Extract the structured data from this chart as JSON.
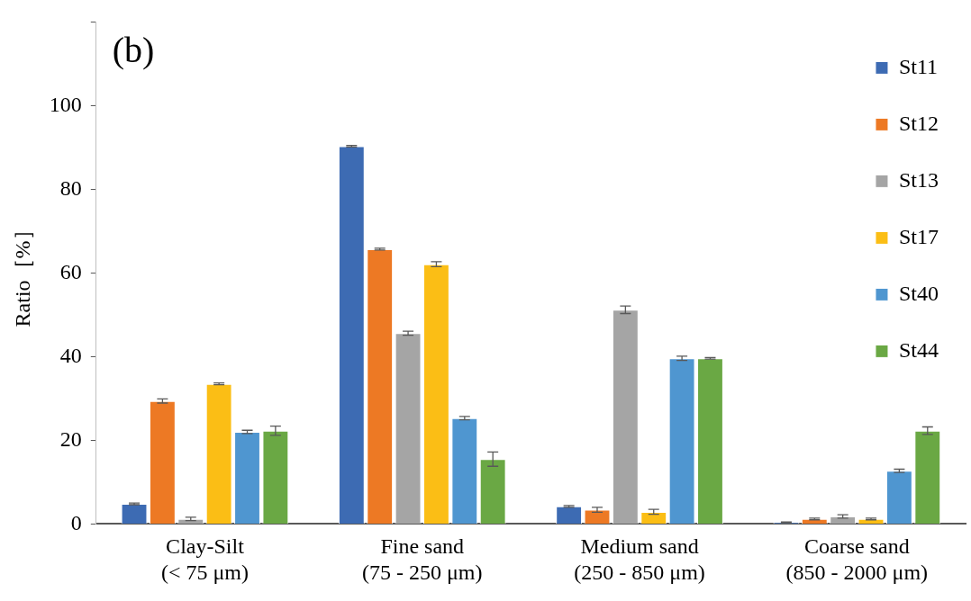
{
  "chart_data": {
    "type": "bar",
    "ylabel": "Ratio［%］",
    "annotations": [
      "(b)"
    ],
    "categories": [
      "Clay-Silt\n(< 75 μm)",
      "Fine sand\n(75 - 250 μm)",
      "Medium sand\n(250 - 850 μm)",
      "Coarse sand\n(850 - 2000 μm)"
    ],
    "series": [
      {
        "name": "St11",
        "color": "#3d6bb3",
        "values": [
          4.8,
          90.3,
          4.2,
          0.4
        ],
        "errors": [
          0.2,
          0.2,
          0.2,
          0.1
        ]
      },
      {
        "name": "St12",
        "color": "#ed7924",
        "values": [
          29.4,
          65.7,
          3.4,
          1.2
        ],
        "errors": [
          0.5,
          0.2,
          0.6,
          0.2
        ]
      },
      {
        "name": "St13",
        "color": "#a5a5a5",
        "values": [
          1.2,
          45.6,
          51.2,
          1.8
        ],
        "errors": [
          0.4,
          0.5,
          0.9,
          0.4
        ]
      },
      {
        "name": "St17",
        "color": "#fbbe15",
        "values": [
          33.5,
          62.1,
          2.9,
          1.2
        ],
        "errors": [
          0.2,
          0.6,
          0.6,
          0.2
        ]
      },
      {
        "name": "St40",
        "color": "#4f96d0",
        "values": [
          22.0,
          25.3,
          39.6,
          12.7
        ],
        "errors": [
          0.4,
          0.4,
          0.5,
          0.4
        ]
      },
      {
        "name": "St44",
        "color": "#6aa844",
        "values": [
          22.3,
          15.5,
          39.6,
          22.3
        ],
        "errors": [
          1.1,
          1.7,
          0.2,
          0.9
        ]
      }
    ],
    "ylim": [
      0,
      120
    ],
    "yticks": [
      0,
      20,
      40,
      60,
      80,
      100,
      {
        "value": 120,
        "label": null
      }
    ],
    "grid": false,
    "legend": "top right"
  }
}
